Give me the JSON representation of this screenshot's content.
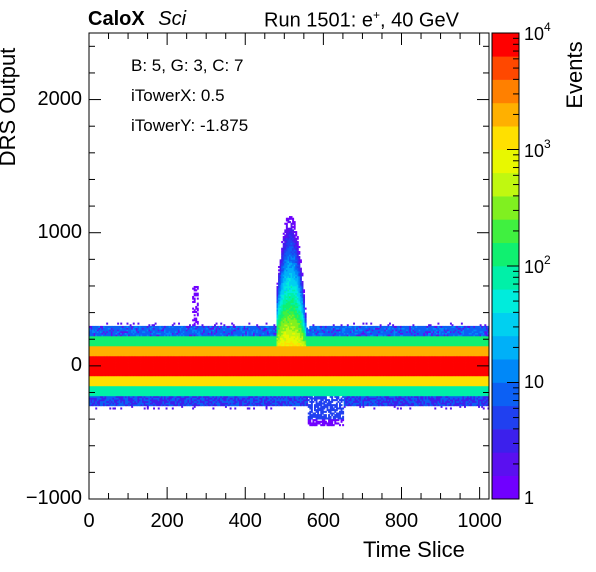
{
  "header": {
    "brand": "CaloX",
    "tag": "Sci",
    "run_text": "Run 1501: e",
    "particle_sup": "+",
    "run_tail": ", 40 GeV"
  },
  "annotations": [
    "B: 5, G: 3, C: 7",
    "iTowerX: 0.5",
    "iTowerY: -1.875"
  ],
  "chart_data": {
    "type": "heatmap",
    "xlabel": "Time Slice",
    "ylabel": "DRS Output",
    "zlabel": "Events",
    "xlim": [
      0,
      1024
    ],
    "ylim": [
      -1000,
      2500
    ],
    "zlim": [
      1,
      10000
    ],
    "z_log": true,
    "x_ticks": [
      {
        "v": 0,
        "label": "0"
      },
      {
        "v": 200,
        "label": "200"
      },
      {
        "v": 400,
        "label": "400"
      },
      {
        "v": 600,
        "label": "600"
      },
      {
        "v": 800,
        "label": "800"
      },
      {
        "v": 1000,
        "label": "1000"
      }
    ],
    "y_ticks": [
      {
        "v": -1000,
        "label": "−1000"
      },
      {
        "v": 0,
        "label": "0"
      },
      {
        "v": 1000,
        "label": "1000"
      },
      {
        "v": 2000,
        "label": "2000"
      }
    ],
    "z_ticks": [
      {
        "v": 1,
        "label": "1",
        "sup": ""
      },
      {
        "v": 10,
        "label": "10",
        "sup": ""
      },
      {
        "v": 100,
        "label": "10",
        "sup": "2"
      },
      {
        "v": 1000,
        "label": "10",
        "sup": "3"
      },
      {
        "v": 10000,
        "label": "10",
        "sup": "4"
      }
    ],
    "grid": false,
    "palette": [
      "#7000ff",
      "#5a10f0",
      "#3c20ec",
      "#2040f0",
      "#0c60f4",
      "#0088f8",
      "#00b0f8",
      "#00d0f0",
      "#00ecdc",
      "#00f0a8",
      "#10f070",
      "#40f040",
      "#80f020",
      "#c0f810",
      "#e8f800",
      "#ffe000",
      "#ffb000",
      "#ff8000",
      "#ff4800",
      "#ff0000"
    ],
    "baseline_bands": [
      {
        "y0": -300,
        "y1": -225,
        "z": 8
      },
      {
        "y0": -225,
        "y1": -150,
        "z": 80
      },
      {
        "y0": -150,
        "y1": -75,
        "z": 1500
      },
      {
        "y0": -75,
        "y1": 75,
        "z": 10000
      },
      {
        "y0": 75,
        "y1": 150,
        "z": 2500
      },
      {
        "y0": 150,
        "y1": 225,
        "z": 120
      },
      {
        "y0": 225,
        "y1": 300,
        "z": 10
      }
    ],
    "pulse": {
      "x0": 480,
      "x1": 565,
      "peak_x": 515,
      "peak_y": 1150
    },
    "low_excursion": {
      "x0": 560,
      "x1": 650,
      "y_min": -450
    }
  }
}
